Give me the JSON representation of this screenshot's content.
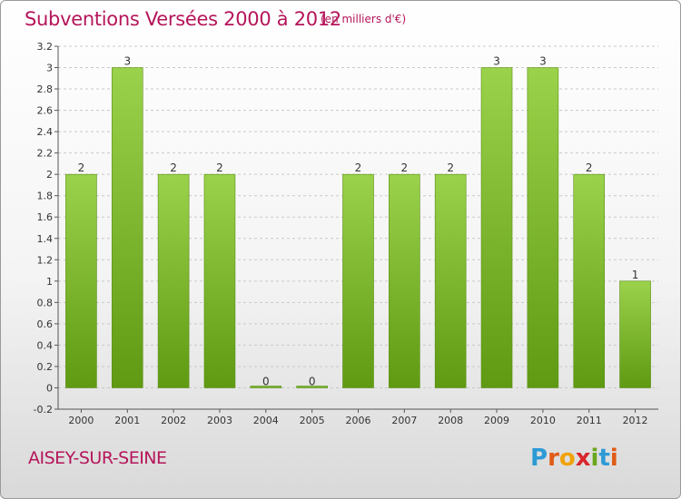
{
  "header": {
    "title": "Subventions Versées 2000 à 2012",
    "unit": "(en milliers d'€)"
  },
  "footer": {
    "town": "AISEY-SUR-SEINE",
    "logo_letters": [
      {
        "ch": "P",
        "color": "#2d9ad6"
      },
      {
        "ch": "r",
        "color": "#e05b16"
      },
      {
        "ch": "o",
        "color": "#f0a30a"
      },
      {
        "ch": "x",
        "color": "#d8262b"
      },
      {
        "ch": "i",
        "color": "#6aa61c"
      },
      {
        "ch": "t",
        "color": "#2d9ad6"
      },
      {
        "ch": "i",
        "color": "#e05b16"
      }
    ]
  },
  "colors": {
    "accent": "#b5155a",
    "bar_light": "#9bd24b",
    "bar_dark": "#5f9a12",
    "grid": "#c9c9c9",
    "axis_text": "#333333"
  },
  "chart_data": {
    "type": "bar",
    "categories": [
      "2000",
      "2001",
      "2002",
      "2003",
      "2004",
      "2005",
      "2006",
      "2007",
      "2008",
      "2009",
      "2010",
      "2011",
      "2012"
    ],
    "values": [
      2,
      3,
      2,
      2,
      0,
      0,
      2,
      2,
      2,
      3,
      3,
      2,
      1
    ],
    "data_labels": [
      "2",
      "3",
      "2",
      "2",
      "0",
      "0",
      "2",
      "2",
      "2",
      "3",
      "3",
      "2",
      "1"
    ],
    "yticks": [
      "-0.2",
      "0",
      "0.2",
      "0.4",
      "0.6",
      "0.8",
      "1",
      "1.2",
      "1.4",
      "1.6",
      "1.8",
      "2",
      "2.2",
      "2.4",
      "2.6",
      "2.8",
      "3",
      "3.2"
    ],
    "ylim": [
      -0.2,
      3.2
    ],
    "title": "Subventions Versées 2000 à 2012",
    "xlabel": "",
    "ylabel": "",
    "grid": "horizontal dashed",
    "legend": "none"
  }
}
